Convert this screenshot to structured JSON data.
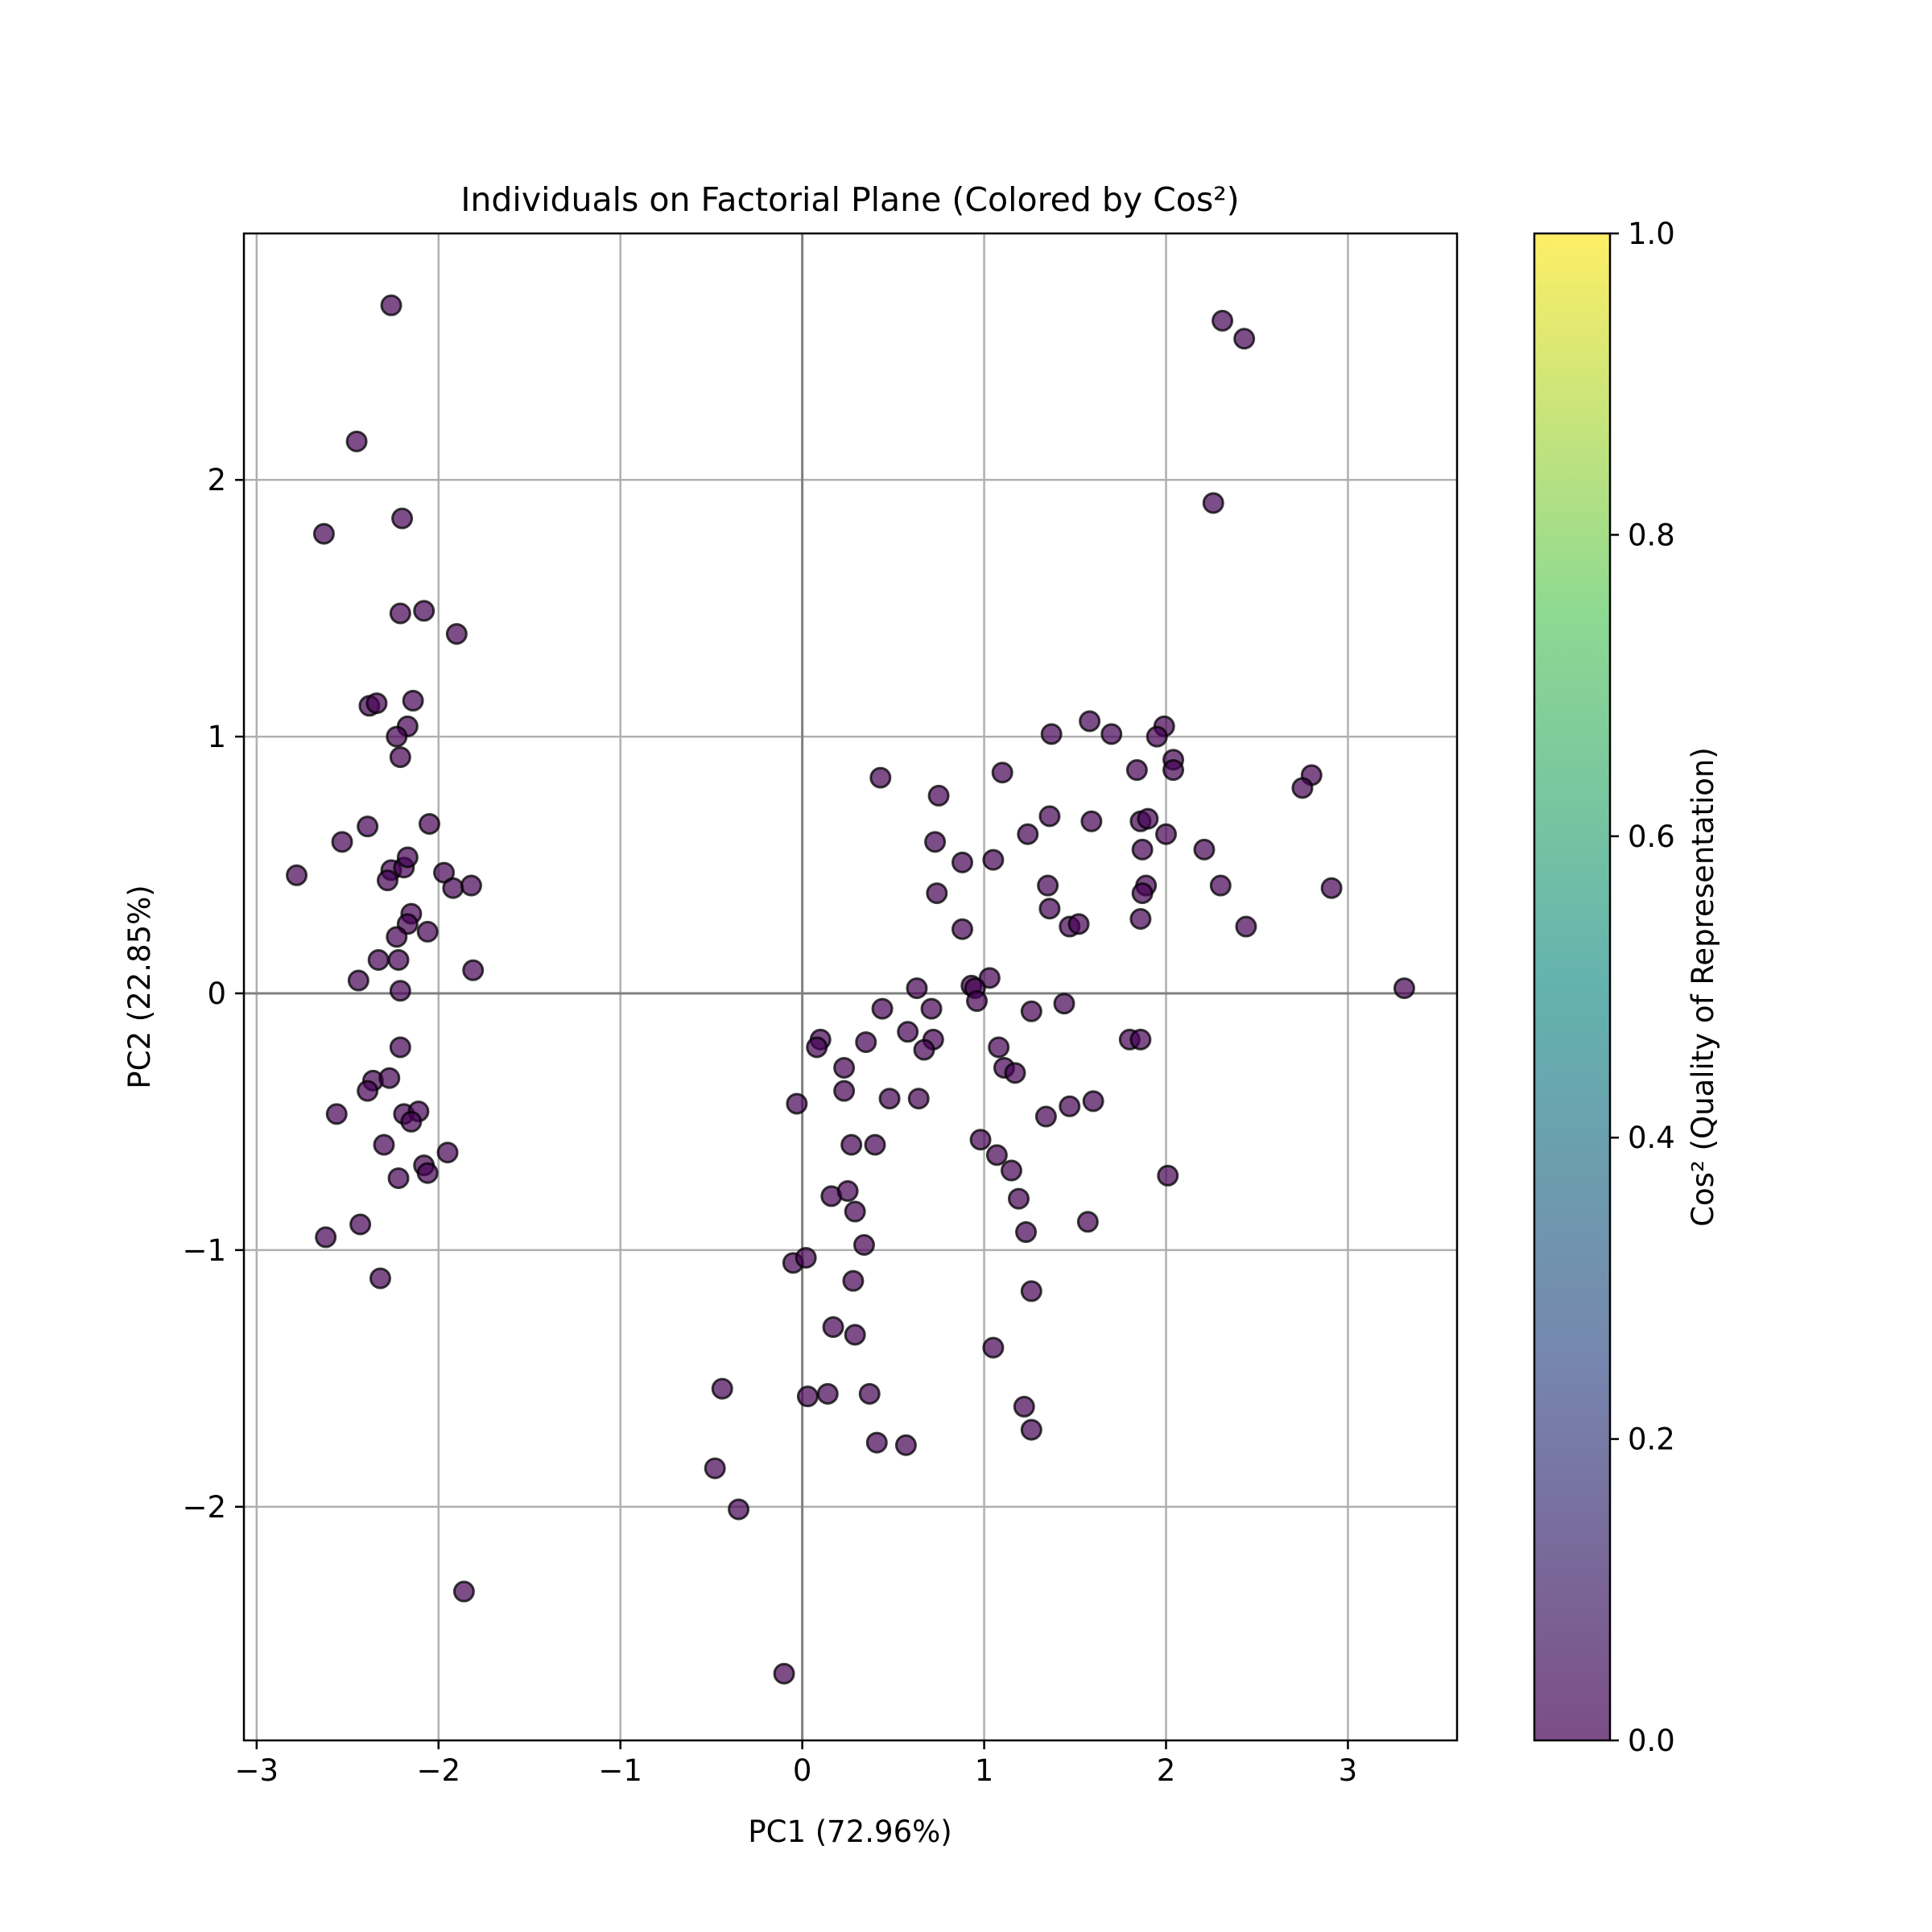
{
  "chart_data": {
    "type": "scatter",
    "title": "Individuals on Factorial Plane (Colored by Cos²)",
    "xlabel": "PC1 (72.96%)",
    "ylabel": "PC2 (22.85%)",
    "xlim": [
      -3.07,
      3.6
    ],
    "ylim": [
      -2.91,
      2.96
    ],
    "xticks": [
      -3,
      -2,
      -1,
      0,
      1,
      2,
      3
    ],
    "xtick_labels": [
      "−3",
      "−2",
      "−1",
      "0",
      "1",
      "2",
      "3"
    ],
    "yticks": [
      -2,
      -1,
      0,
      1,
      2
    ],
    "ytick_labels": [
      "−2",
      "−1",
      "0",
      "1",
      "2"
    ],
    "grid": true,
    "reference_lines": {
      "x": 0,
      "y": 0
    },
    "colorbar": {
      "label": "Cos² (Quality of Representation)",
      "range": [
        0.0,
        1.0
      ],
      "ticks": [
        0.0,
        0.2,
        0.4,
        0.6,
        0.8,
        1.0
      ],
      "tick_labels": [
        "0.0",
        "0.2",
        "0.4",
        "0.6",
        "0.8",
        "1.0"
      ],
      "colormap": [
        "#440154",
        "#3b528b",
        "#21918c",
        "#5ec962",
        "#fde725"
      ],
      "alpha": 0.7
    },
    "marker": {
      "fill": "#440154",
      "edge": "#000000",
      "alpha": 0.7
    },
    "points": [
      {
        "x": -2.26,
        "y": 2.68
      },
      {
        "x": -2.45,
        "y": 2.15
      },
      {
        "x": -2.63,
        "y": 1.79
      },
      {
        "x": -2.2,
        "y": 1.85
      },
      {
        "x": -2.21,
        "y": 1.48
      },
      {
        "x": -2.08,
        "y": 1.49
      },
      {
        "x": -1.9,
        "y": 1.4
      },
      {
        "x": -2.38,
        "y": 1.12
      },
      {
        "x": -2.34,
        "y": 1.13
      },
      {
        "x": -2.14,
        "y": 1.14
      },
      {
        "x": -2.17,
        "y": 1.04
      },
      {
        "x": -2.23,
        "y": 1.0
      },
      {
        "x": -2.21,
        "y": 0.92
      },
      {
        "x": -2.39,
        "y": 0.65
      },
      {
        "x": -2.53,
        "y": 0.59
      },
      {
        "x": -2.05,
        "y": 0.66
      },
      {
        "x": -2.78,
        "y": 0.46
      },
      {
        "x": -2.26,
        "y": 0.48
      },
      {
        "x": -2.19,
        "y": 0.49
      },
      {
        "x": -2.17,
        "y": 0.53
      },
      {
        "x": -2.28,
        "y": 0.44
      },
      {
        "x": -1.97,
        "y": 0.47
      },
      {
        "x": -1.92,
        "y": 0.41
      },
      {
        "x": -1.82,
        "y": 0.42
      },
      {
        "x": -2.15,
        "y": 0.31
      },
      {
        "x": -2.17,
        "y": 0.27
      },
      {
        "x": -2.23,
        "y": 0.22
      },
      {
        "x": -2.06,
        "y": 0.24
      },
      {
        "x": -2.33,
        "y": 0.13
      },
      {
        "x": -2.22,
        "y": 0.13
      },
      {
        "x": -1.81,
        "y": 0.09
      },
      {
        "x": -2.44,
        "y": 0.05
      },
      {
        "x": -2.21,
        "y": 0.01
      },
      {
        "x": -2.21,
        "y": -0.21
      },
      {
        "x": -2.36,
        "y": -0.34
      },
      {
        "x": -2.27,
        "y": -0.33
      },
      {
        "x": -2.39,
        "y": -0.38
      },
      {
        "x": -2.56,
        "y": -0.47
      },
      {
        "x": -2.19,
        "y": -0.47
      },
      {
        "x": -2.11,
        "y": -0.46
      },
      {
        "x": -2.15,
        "y": -0.5
      },
      {
        "x": -2.3,
        "y": -0.59
      },
      {
        "x": -1.95,
        "y": -0.62
      },
      {
        "x": -2.08,
        "y": -0.67
      },
      {
        "x": -2.06,
        "y": -0.7
      },
      {
        "x": -2.22,
        "y": -0.72
      },
      {
        "x": -2.62,
        "y": -0.95
      },
      {
        "x": -2.43,
        "y": -0.9
      },
      {
        "x": -2.32,
        "y": -1.11
      },
      {
        "x": -1.86,
        "y": -2.33
      },
      {
        "x": 2.31,
        "y": 2.62
      },
      {
        "x": 2.43,
        "y": 2.55
      },
      {
        "x": 2.26,
        "y": 1.91
      },
      {
        "x": 1.58,
        "y": 1.06
      },
      {
        "x": 1.37,
        "y": 1.01
      },
      {
        "x": 1.7,
        "y": 1.01
      },
      {
        "x": 1.99,
        "y": 1.04
      },
      {
        "x": 1.95,
        "y": 1.0
      },
      {
        "x": 2.04,
        "y": 0.91
      },
      {
        "x": 2.04,
        "y": 0.87
      },
      {
        "x": 1.84,
        "y": 0.87
      },
      {
        "x": 0.43,
        "y": 0.84
      },
      {
        "x": 1.1,
        "y": 0.86
      },
      {
        "x": 2.8,
        "y": 0.85
      },
      {
        "x": 2.75,
        "y": 0.8
      },
      {
        "x": 0.75,
        "y": 0.77
      },
      {
        "x": 1.36,
        "y": 0.69
      },
      {
        "x": 1.59,
        "y": 0.67
      },
      {
        "x": 1.86,
        "y": 0.67
      },
      {
        "x": 1.9,
        "y": 0.68
      },
      {
        "x": 1.24,
        "y": 0.62
      },
      {
        "x": 2.0,
        "y": 0.62
      },
      {
        "x": 0.73,
        "y": 0.59
      },
      {
        "x": 1.87,
        "y": 0.56
      },
      {
        "x": 2.21,
        "y": 0.56
      },
      {
        "x": 0.88,
        "y": 0.51
      },
      {
        "x": 1.05,
        "y": 0.52
      },
      {
        "x": 1.35,
        "y": 0.42
      },
      {
        "x": 1.89,
        "y": 0.42
      },
      {
        "x": 1.87,
        "y": 0.39
      },
      {
        "x": 2.3,
        "y": 0.42
      },
      {
        "x": 2.91,
        "y": 0.41
      },
      {
        "x": 0.74,
        "y": 0.39
      },
      {
        "x": 1.36,
        "y": 0.33
      },
      {
        "x": 1.86,
        "y": 0.29
      },
      {
        "x": 1.47,
        "y": 0.26
      },
      {
        "x": 1.52,
        "y": 0.27
      },
      {
        "x": 2.44,
        "y": 0.26
      },
      {
        "x": 0.88,
        "y": 0.25
      },
      {
        "x": 1.03,
        "y": 0.06
      },
      {
        "x": 0.93,
        "y": 0.03
      },
      {
        "x": 0.95,
        "y": 0.02
      },
      {
        "x": 0.63,
        "y": 0.02
      },
      {
        "x": 3.31,
        "y": 0.02
      },
      {
        "x": 0.96,
        "y": -0.03
      },
      {
        "x": 0.44,
        "y": -0.06
      },
      {
        "x": 0.71,
        "y": -0.06
      },
      {
        "x": 1.44,
        "y": -0.04
      },
      {
        "x": 1.26,
        "y": -0.07
      },
      {
        "x": 0.58,
        "y": -0.15
      },
      {
        "x": 0.1,
        "y": -0.18
      },
      {
        "x": 0.08,
        "y": -0.21
      },
      {
        "x": 0.35,
        "y": -0.19
      },
      {
        "x": 0.72,
        "y": -0.18
      },
      {
        "x": 0.67,
        "y": -0.22
      },
      {
        "x": 1.08,
        "y": -0.21
      },
      {
        "x": 1.8,
        "y": -0.18
      },
      {
        "x": 1.86,
        "y": -0.18
      },
      {
        "x": 0.23,
        "y": -0.29
      },
      {
        "x": 1.11,
        "y": -0.29
      },
      {
        "x": 1.17,
        "y": -0.31
      },
      {
        "x": 0.23,
        "y": -0.38
      },
      {
        "x": 0.48,
        "y": -0.41
      },
      {
        "x": 0.64,
        "y": -0.41
      },
      {
        "x": 1.47,
        "y": -0.44
      },
      {
        "x": 1.6,
        "y": -0.42
      },
      {
        "x": -0.03,
        "y": -0.43
      },
      {
        "x": 1.34,
        "y": -0.48
      },
      {
        "x": 0.27,
        "y": -0.59
      },
      {
        "x": 0.4,
        "y": -0.59
      },
      {
        "x": 0.98,
        "y": -0.57
      },
      {
        "x": 1.07,
        "y": -0.63
      },
      {
        "x": 1.15,
        "y": -0.69
      },
      {
        "x": 2.01,
        "y": -0.71
      },
      {
        "x": 0.16,
        "y": -0.79
      },
      {
        "x": 0.25,
        "y": -0.77
      },
      {
        "x": 1.19,
        "y": -0.8
      },
      {
        "x": 0.29,
        "y": -0.85
      },
      {
        "x": 1.57,
        "y": -0.89
      },
      {
        "x": 1.23,
        "y": -0.93
      },
      {
        "x": 0.34,
        "y": -0.98
      },
      {
        "x": -0.05,
        "y": -1.05
      },
      {
        "x": 0.02,
        "y": -1.03
      },
      {
        "x": 0.28,
        "y": -1.12
      },
      {
        "x": 1.26,
        "y": -1.16
      },
      {
        "x": 0.17,
        "y": -1.3
      },
      {
        "x": 0.29,
        "y": -1.33
      },
      {
        "x": 1.05,
        "y": -1.38
      },
      {
        "x": -0.44,
        "y": -1.54
      },
      {
        "x": 0.03,
        "y": -1.57
      },
      {
        "x": 0.14,
        "y": -1.56
      },
      {
        "x": 0.37,
        "y": -1.56
      },
      {
        "x": 1.22,
        "y": -1.61
      },
      {
        "x": 1.26,
        "y": -1.7
      },
      {
        "x": 0.41,
        "y": -1.75
      },
      {
        "x": 0.57,
        "y": -1.76
      },
      {
        "x": -0.48,
        "y": -1.85
      },
      {
        "x": -0.35,
        "y": -2.01
      },
      {
        "x": -0.1,
        "y": -2.65
      }
    ]
  }
}
